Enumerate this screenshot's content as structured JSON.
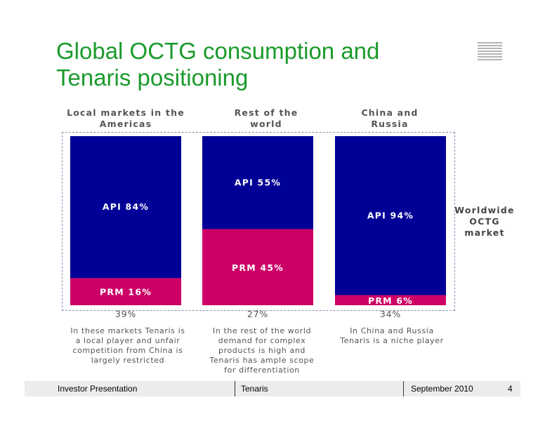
{
  "title": {
    "line1": "Global OCTG consumption and",
    "line2": "Tenaris positioning"
  },
  "brand_logo": "Tenaris logo stripes",
  "frame_label": {
    "line1": "Worldwide",
    "line2": "OCTG",
    "line3": "market"
  },
  "chart_data": {
    "type": "bar",
    "stacked": true,
    "categories": [
      {
        "line1": "Local markets in the",
        "line2": "Americas"
      },
      {
        "line1": "Rest of the",
        "line2": "world"
      },
      {
        "line1": "China and",
        "line2": "Russia"
      }
    ],
    "series": [
      {
        "name": "API",
        "values": [
          84,
          55,
          94
        ],
        "color": "#000096",
        "labels": [
          "API 84%",
          "API 55%",
          "API 94%"
        ]
      },
      {
        "name": "PRM",
        "values": [
          16,
          45,
          6
        ],
        "color": "#cc0066",
        "labels": [
          "PRM 16%",
          "PRM 45%",
          "PRM 6%"
        ]
      }
    ],
    "market_share_labels": [
      "39%",
      "27%",
      "34%"
    ],
    "ylim": [
      0,
      100
    ]
  },
  "notes": [
    [
      "In these markets Tenaris is",
      "a local player and unfair",
      "competition from China is",
      "largely restricted"
    ],
    [
      "In the rest of the world",
      "demand for complex",
      "products is high and",
      "Tenaris has ample scope",
      "for differentiation"
    ],
    [
      "In China and Russia",
      "Tenaris is a niche player"
    ]
  ],
  "footer": {
    "left": "Investor Presentation",
    "center": "Tenaris",
    "date": "September 2010",
    "page": "4"
  }
}
